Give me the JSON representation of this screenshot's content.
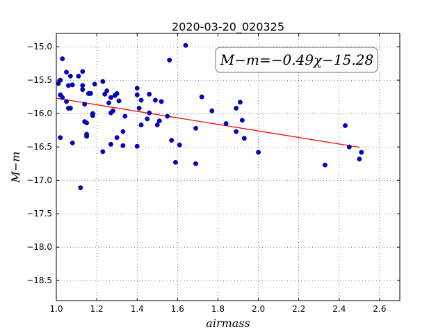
{
  "chart_data": {
    "type": "scatter",
    "title": "2020-03-20_020325",
    "xlabel": "airmass",
    "ylabel": "M−m",
    "xlim": [
      1.0,
      2.7
    ],
    "ylim": [
      -18.8,
      -14.8
    ],
    "y_inverted": true,
    "grid": true,
    "x_ticks": [
      1.0,
      1.2,
      1.4,
      1.6,
      1.8,
      2.0,
      2.2,
      2.4,
      2.6
    ],
    "x_tick_labels": [
      "1.0",
      "1.2",
      "1.4",
      "1.6",
      "1.8",
      "2.0",
      "2.2",
      "2.4",
      "2.6"
    ],
    "y_ticks": [
      -15.0,
      -15.5,
      -16.0,
      -16.5,
      -17.0,
      -17.5,
      -18.0,
      -18.5
    ],
    "y_tick_labels": [
      "−15.0",
      "−15.5",
      "−16.0",
      "−16.5",
      "−17.0",
      "−17.5",
      "−18.0",
      "−18.5"
    ],
    "annotation": "M−m=−0.49χ−15.28",
    "fit": {
      "slope": -0.49,
      "intercept": -15.28,
      "x_range": [
        1.0,
        2.5
      ],
      "color": "#ff0000"
    },
    "point_color": "#0000cc",
    "points": [
      [
        1.01,
        -15.55
      ],
      [
        1.02,
        -15.5
      ],
      [
        1.02,
        -15.72
      ],
      [
        1.02,
        -16.36
      ],
      [
        1.03,
        -15.18
      ],
      [
        1.03,
        -15.76
      ],
      [
        1.05,
        -15.38
      ],
      [
        1.05,
        -15.82
      ],
      [
        1.06,
        -15.58
      ],
      [
        1.06,
        -15.92
      ],
      [
        1.07,
        -15.92
      ],
      [
        1.07,
        -15.44
      ],
      [
        1.08,
        -15.57
      ],
      [
        1.08,
        -16.44
      ],
      [
        1.11,
        -15.44
      ],
      [
        1.12,
        -17.11
      ],
      [
        1.13,
        -15.37
      ],
      [
        1.13,
        -15.58
      ],
      [
        1.13,
        -15.64
      ],
      [
        1.14,
        -15.86
      ],
      [
        1.14,
        -16.12
      ],
      [
        1.15,
        -16.14
      ],
      [
        1.15,
        -16.34
      ],
      [
        1.15,
        -16.31
      ],
      [
        1.16,
        -15.7
      ],
      [
        1.17,
        -15.7
      ],
      [
        1.18,
        -16.0
      ],
      [
        1.18,
        -16.03
      ],
      [
        1.19,
        -15.56
      ],
      [
        1.23,
        -16.57
      ],
      [
        1.23,
        -15.52
      ],
      [
        1.24,
        -15.71
      ],
      [
        1.25,
        -15.66
      ],
      [
        1.26,
        -15.84
      ],
      [
        1.27,
        -15.76
      ],
      [
        1.27,
        -15.99
      ],
      [
        1.27,
        -16.46
      ],
      [
        1.28,
        -15.96
      ],
      [
        1.29,
        -15.73
      ],
      [
        1.3,
        -15.7
      ],
      [
        1.3,
        -16.36
      ],
      [
        1.31,
        -15.81
      ],
      [
        1.33,
        -16.48
      ],
      [
        1.33,
        -16.27
      ],
      [
        1.34,
        -16.04
      ],
      [
        1.4,
        -15.62
      ],
      [
        1.4,
        -15.72
      ],
      [
        1.4,
        -16.49
      ],
      [
        1.41,
        -15.92
      ],
      [
        1.42,
        -15.8
      ],
      [
        1.42,
        -16.17
      ],
      [
        1.45,
        -16.08
      ],
      [
        1.46,
        -15.99
      ],
      [
        1.46,
        -15.71
      ],
      [
        1.49,
        -15.8
      ],
      [
        1.5,
        -16.17
      ],
      [
        1.51,
        -16.11
      ],
      [
        1.52,
        -15.82
      ],
      [
        1.55,
        -16.04
      ],
      [
        1.56,
        -15.2
      ],
      [
        1.57,
        -16.4
      ],
      [
        1.59,
        -16.73
      ],
      [
        1.61,
        -16.47
      ],
      [
        1.64,
        -14.98
      ],
      [
        1.69,
        -16.22
      ],
      [
        1.69,
        -16.75
      ],
      [
        1.72,
        -15.75
      ],
      [
        1.77,
        -15.96
      ],
      [
        1.84,
        -16.15
      ],
      [
        1.89,
        -15.92
      ],
      [
        1.89,
        -16.27
      ],
      [
        1.91,
        -15.83
      ],
      [
        1.92,
        -16.1
      ],
      [
        1.93,
        -16.37
      ],
      [
        2.0,
        -16.58
      ],
      [
        2.33,
        -16.77
      ],
      [
        2.43,
        -16.18
      ],
      [
        2.45,
        -16.5
      ],
      [
        2.5,
        -16.68
      ],
      [
        2.51,
        -16.58
      ]
    ]
  }
}
